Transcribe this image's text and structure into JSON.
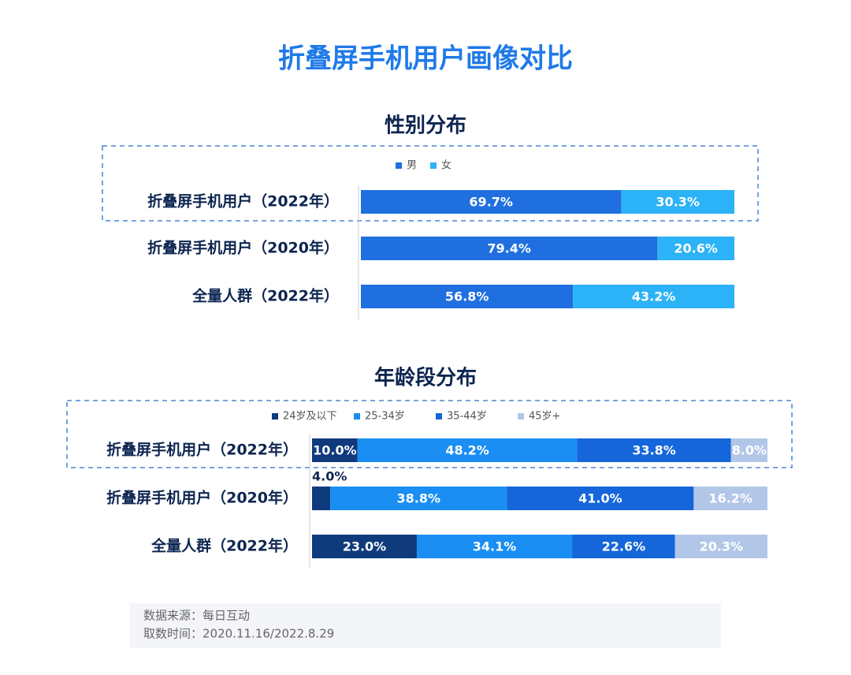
{
  "title": "折叠屏手机用户画像对比",
  "chart_data": [
    {
      "type": "bar",
      "orientation": "horizontal",
      "stacked": true,
      "title": "性别分布",
      "categories": [
        "折叠屏手机用户（2022年）",
        "折叠屏手机用户（2020年）",
        "全量人群（2022年）"
      ],
      "xlim": [
        0,
        100
      ],
      "series": [
        {
          "name": "男",
          "color": "#1f6fe0",
          "values": [
            69.7,
            79.4,
            56.8
          ],
          "value_labels": [
            "69.7%",
            "79.4%",
            "56.8%"
          ]
        },
        {
          "name": "女",
          "color": "#2cb2f6",
          "values": [
            30.3,
            20.6,
            43.2
          ],
          "value_labels": [
            "30.3%",
            "20.6%",
            "43.2%"
          ]
        }
      ]
    },
    {
      "type": "bar",
      "orientation": "horizontal",
      "stacked": true,
      "title": "年龄段分布",
      "categories": [
        "折叠屏手机用户（2022年）",
        "折叠屏手机用户（2020年）",
        "全量人群（2022年）"
      ],
      "xlim": [
        0,
        100
      ],
      "series": [
        {
          "name": "24岁及以下",
          "color": "#0f3a7c",
          "values": [
            10.0,
            4.0,
            23.0
          ],
          "value_labels": [
            "10.0%",
            "4.0%",
            "23.0%"
          ]
        },
        {
          "name": "25-34岁",
          "color": "#1a8ef2",
          "values": [
            48.2,
            38.8,
            34.1
          ],
          "value_labels": [
            "48.2%",
            "38.8%",
            "34.1%"
          ]
        },
        {
          "name": "35-44岁",
          "color": "#1566da",
          "values": [
            33.8,
            41.0,
            22.6
          ],
          "value_labels": [
            "33.8%",
            "41.0%",
            "22.6%"
          ]
        },
        {
          "name": "45岁+",
          "color": "#b2c7e8",
          "values": [
            8.0,
            16.2,
            20.3
          ],
          "value_labels": [
            "8.0%",
            "16.2%",
            "20.3%"
          ]
        }
      ]
    }
  ],
  "source": [
    "数据来源：每日互动",
    "取数时间：2020.11.16/2022.8.29"
  ]
}
